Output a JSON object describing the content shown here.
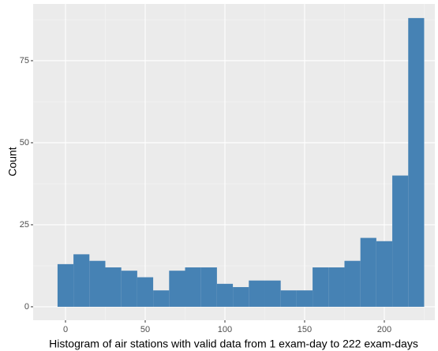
{
  "chart_data": {
    "type": "histogram",
    "x_label": "Histogram of air stations with valid data from 1 exam-day to 222 exam-days",
    "y_label": "Count",
    "bins": [
      -5,
      5,
      15,
      25,
      35,
      45,
      55,
      65,
      75,
      85,
      95,
      105,
      115,
      125,
      135,
      145,
      155,
      165,
      175,
      185,
      195,
      205,
      215,
      225
    ],
    "values": [
      13,
      16,
      14,
      12,
      11,
      9,
      5,
      11,
      12,
      12,
      7,
      6,
      8,
      8,
      5,
      5,
      12,
      12,
      14,
      21,
      20,
      40,
      88
    ],
    "color": "#4682b4",
    "xlim": [
      -20.3,
      231.7
    ],
    "xticks": [
      0,
      50,
      100,
      150,
      200
    ],
    "ylim": [
      -4.1,
      92.3
    ],
    "yticks": [
      0,
      25,
      50,
      75
    ],
    "grid": true
  }
}
